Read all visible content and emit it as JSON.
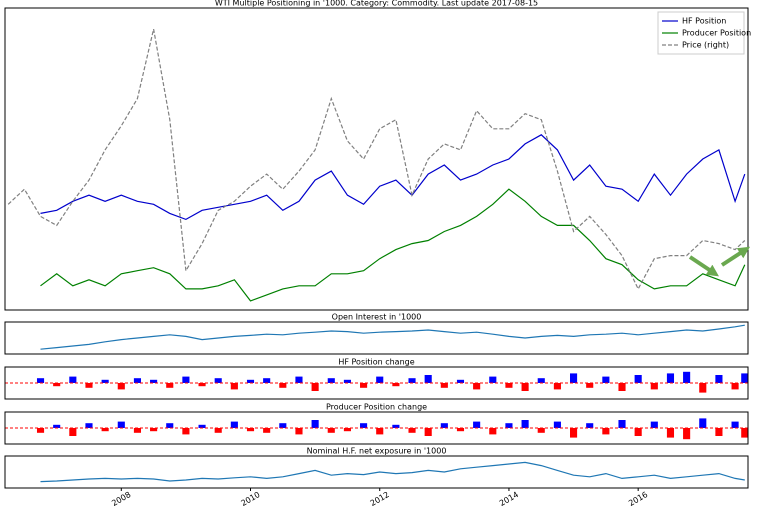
{
  "chart_data": [
    {
      "type": "line",
      "title": "WTI Multiple Positioning in '1000. Category: Commodity. Last update 2017-08-15",
      "legend": "upper right",
      "xlim": [
        2006.2,
        2017.7
      ],
      "ylim": [
        0,
        100
      ],
      "y2lim": [
        0,
        100
      ],
      "x": [
        2006.25,
        2006.5,
        2006.75,
        2007,
        2007.25,
        2007.5,
        2007.75,
        2008,
        2008.25,
        2008.5,
        2008.75,
        2009,
        2009.25,
        2009.5,
        2009.75,
        2010,
        2010.25,
        2010.5,
        2010.75,
        2011,
        2011.25,
        2011.5,
        2011.75,
        2012,
        2012.25,
        2012.5,
        2012.75,
        2013,
        2013.25,
        2013.5,
        2013.75,
        2014,
        2014.25,
        2014.5,
        2014.75,
        2015,
        2015.25,
        2015.5,
        2015.75,
        2016,
        2016.25,
        2016.5,
        2016.75,
        2017,
        2017.25,
        2017.5,
        2017.65
      ],
      "series": [
        {
          "name": "HF Position",
          "color": "#0000cc",
          "linestyle": "solid",
          "values": [
            null,
            null,
            32,
            33,
            36,
            38,
            36,
            38,
            36,
            35,
            32,
            30,
            33,
            34,
            35,
            36,
            38,
            33,
            36,
            43,
            46,
            38,
            35,
            41,
            43,
            38,
            45,
            48,
            43,
            45,
            48,
            50,
            55,
            58,
            53,
            43,
            48,
            41,
            40,
            36,
            45,
            38,
            45,
            50,
            53,
            36,
            45
          ]
        },
        {
          "name": "Producer Position",
          "color": "#008000",
          "linestyle": "solid",
          "values": [
            null,
            null,
            8,
            12,
            8,
            10,
            8,
            12,
            13,
            14,
            12,
            7,
            7,
            8,
            10,
            3,
            5,
            7,
            8,
            8,
            12,
            12,
            13,
            17,
            20,
            22,
            23,
            26,
            28,
            31,
            35,
            40,
            36,
            31,
            28,
            28,
            23,
            17,
            15,
            10,
            7,
            8,
            8,
            12,
            10,
            8,
            15
          ]
        },
        {
          "name": "Price (right)",
          "color": "#808080",
          "linestyle": "dashed",
          "axis": "y2",
          "values": [
            35,
            40,
            31,
            28,
            36,
            43,
            53,
            61,
            70,
            93,
            63,
            13,
            22,
            33,
            36,
            41,
            45,
            40,
            46,
            53,
            70,
            56,
            50,
            60,
            63,
            38,
            50,
            55,
            53,
            66,
            60,
            60,
            65,
            63,
            46,
            26,
            31,
            25,
            18,
            7,
            17,
            18,
            18,
            23,
            22,
            20,
            23
          ]
        }
      ]
    },
    {
      "type": "line",
      "title": "Open Interest in '1000",
      "xlim": [
        2006.2,
        2017.7
      ],
      "ylim": [
        0,
        100
      ],
      "x": [
        2006.25,
        2006.5,
        2006.75,
        2007,
        2007.25,
        2007.5,
        2007.75,
        2008,
        2008.25,
        2008.5,
        2008.75,
        2009,
        2009.25,
        2009.5,
        2009.75,
        2010,
        2010.25,
        2010.5,
        2010.75,
        2011,
        2011.25,
        2011.5,
        2011.75,
        2012,
        2012.25,
        2012.5,
        2012.75,
        2013,
        2013.25,
        2013.5,
        2013.75,
        2014,
        2014.25,
        2014.5,
        2014.75,
        2015,
        2015.25,
        2015.5,
        2015.75,
        2016,
        2016.25,
        2016.5,
        2016.75,
        2017,
        2017.25,
        2017.5,
        2017.65
      ],
      "series": [
        {
          "color": "#1f77b4",
          "linestyle": "solid",
          "values": [
            null,
            null,
            15,
            20,
            25,
            30,
            38,
            45,
            50,
            55,
            60,
            55,
            45,
            50,
            55,
            58,
            62,
            60,
            65,
            68,
            72,
            70,
            65,
            68,
            70,
            72,
            75,
            70,
            65,
            68,
            62,
            55,
            50,
            55,
            58,
            55,
            60,
            62,
            65,
            60,
            65,
            70,
            75,
            72,
            78,
            85,
            90
          ]
        }
      ]
    },
    {
      "type": "bar",
      "title": "HF Position change",
      "xlim": [
        2006.2,
        2017.7
      ],
      "ylim": [
        -10,
        10
      ],
      "pos_color": "#0000ff",
      "neg_color": "#ff0000",
      "zero_line_color": "#ff0000",
      "x": [
        2006.25,
        2006.5,
        2006.75,
        2007,
        2007.25,
        2007.5,
        2007.75,
        2008,
        2008.25,
        2008.5,
        2008.75,
        2009,
        2009.25,
        2009.5,
        2009.75,
        2010,
        2010.25,
        2010.5,
        2010.75,
        2011,
        2011.25,
        2011.5,
        2011.75,
        2012,
        2012.25,
        2012.5,
        2012.75,
        2013,
        2013.25,
        2013.5,
        2013.75,
        2014,
        2014.25,
        2014.5,
        2014.75,
        2015,
        2015.25,
        2015.5,
        2015.75,
        2016,
        2016.25,
        2016.5,
        2016.75,
        2017,
        2017.25,
        2017.5,
        2017.65
      ],
      "values": [
        null,
        null,
        3,
        -2,
        4,
        -3,
        2,
        -4,
        3,
        2,
        -3,
        4,
        -2,
        3,
        -4,
        2,
        3,
        -3,
        4,
        -5,
        3,
        2,
        -3,
        4,
        -2,
        3,
        5,
        -3,
        2,
        -4,
        4,
        -3,
        -5,
        3,
        -4,
        6,
        -3,
        4,
        -5,
        5,
        -4,
        6,
        7,
        -6,
        5,
        -4,
        6
      ]
    },
    {
      "type": "bar",
      "title": "Producer Position change",
      "xlim": [
        2006.2,
        2017.7
      ],
      "ylim": [
        -10,
        10
      ],
      "pos_color": "#0000ff",
      "neg_color": "#ff0000",
      "zero_line_color": "#ff0000",
      "x": [
        2006.25,
        2006.5,
        2006.75,
        2007,
        2007.25,
        2007.5,
        2007.75,
        2008,
        2008.25,
        2008.5,
        2008.75,
        2009,
        2009.25,
        2009.5,
        2009.75,
        2010,
        2010.25,
        2010.5,
        2010.75,
        2011,
        2011.25,
        2011.5,
        2011.75,
        2012,
        2012.25,
        2012.5,
        2012.75,
        2013,
        2013.25,
        2013.5,
        2013.75,
        2014,
        2014.25,
        2014.5,
        2014.75,
        2015,
        2015.25,
        2015.5,
        2015.75,
        2016,
        2016.25,
        2016.5,
        2016.75,
        2017,
        2017.25,
        2017.5,
        2017.65
      ],
      "values": [
        null,
        null,
        -3,
        2,
        -5,
        3,
        -2,
        4,
        -3,
        -2,
        3,
        -4,
        2,
        -3,
        4,
        -2,
        -3,
        3,
        -4,
        5,
        -3,
        -2,
        3,
        -4,
        2,
        -3,
        -5,
        3,
        -2,
        4,
        -4,
        3,
        5,
        -3,
        4,
        -6,
        3,
        -4,
        5,
        -5,
        4,
        -6,
        -7,
        6,
        -5,
        4,
        -6
      ]
    },
    {
      "type": "line",
      "title": "Nominal H.F. net exposure in '1000",
      "xlim": [
        2006.2,
        2017.7
      ],
      "ylim": [
        0,
        100
      ],
      "xticks": [
        2008,
        2010,
        2012,
        2014,
        2016
      ],
      "x": [
        2006.25,
        2006.5,
        2006.75,
        2007,
        2007.25,
        2007.5,
        2007.75,
        2008,
        2008.25,
        2008.5,
        2008.75,
        2009,
        2009.25,
        2009.5,
        2009.75,
        2010,
        2010.25,
        2010.5,
        2010.75,
        2011,
        2011.25,
        2011.5,
        2011.75,
        2012,
        2012.25,
        2012.5,
        2012.75,
        2013,
        2013.25,
        2013.5,
        2013.75,
        2014,
        2014.25,
        2014.5,
        2014.75,
        2015,
        2015.25,
        2015.5,
        2015.75,
        2016,
        2016.25,
        2016.5,
        2016.75,
        2017,
        2017.25,
        2017.5,
        2017.65
      ],
      "series": [
        {
          "color": "#1f77b4",
          "linestyle": "solid",
          "values": [
            null,
            null,
            20,
            22,
            25,
            28,
            30,
            28,
            30,
            28,
            22,
            25,
            30,
            28,
            32,
            35,
            30,
            35,
            45,
            55,
            40,
            45,
            42,
            50,
            45,
            48,
            55,
            50,
            60,
            65,
            70,
            75,
            80,
            70,
            55,
            40,
            35,
            45,
            30,
            35,
            40,
            30,
            35,
            40,
            45,
            30,
            25
          ]
        }
      ]
    }
  ]
}
